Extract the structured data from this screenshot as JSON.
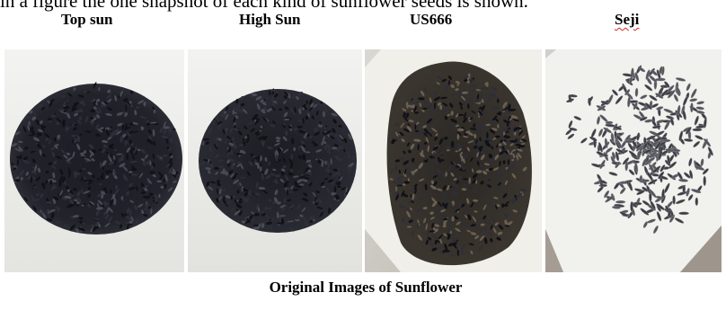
{
  "intro_text": "in a figure the one snapshot of each kind of sunflower seeds is shown.",
  "figure": {
    "panels": [
      {
        "label": "Top sun",
        "image": "seed-pile-photo"
      },
      {
        "label": "High Sun",
        "image": "seed-pile-photo"
      },
      {
        "label": "US666",
        "image": "seed-pile-photo"
      },
      {
        "label": "Seji",
        "image": "scattered-seeds-photo"
      }
    ],
    "caption": "Original Images of Sunflower"
  }
}
